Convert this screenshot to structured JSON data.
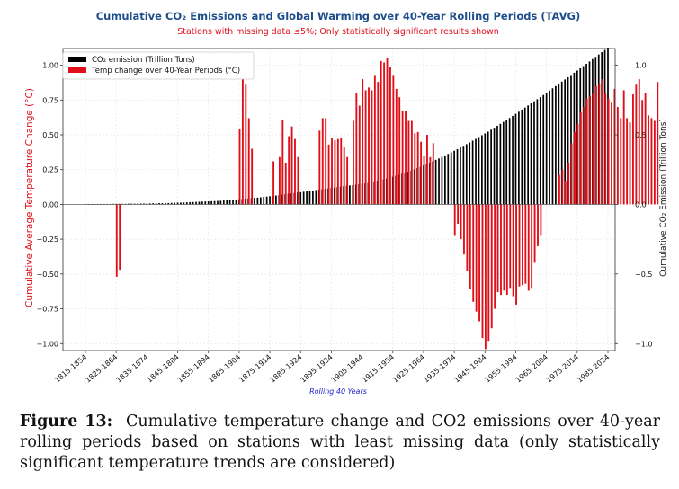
{
  "caption": {
    "label": "Figure 13:",
    "text": "Cumulative temperature change and CO2 emissions over 40-year rolling periods based on stations with least missing data (only statistically significant temperature trends are considered)"
  },
  "colors": {
    "co2": "#000000",
    "temp": "#e0101a",
    "title": "#1f4e8c"
  },
  "chart_data": {
    "type": "bar",
    "title": "Cumulative CO₂ Emissions and Global Warming over 40-Year Rolling Periods (TAVG)",
    "subtitle": "Stations with missing data ≤5%; Only statistically significant results shown",
    "xlabel": "Rolling 40 Years",
    "ylabel_left": "Cumulative Average Temperature Change (°C)",
    "ylabel_right": "Cumulative CO₂ Emission (Trillion Tons)",
    "ylim_left": [
      -1.05,
      1.12
    ],
    "ylim_right": [
      -1.05,
      1.12
    ],
    "yticks_left": [
      "1.00",
      "0.75",
      "0.50",
      "0.25",
      "0.00",
      "−0.25",
      "−0.50",
      "−0.75",
      "−1.00"
    ],
    "yticks_left_values": [
      1.0,
      0.75,
      0.5,
      0.25,
      0.0,
      -0.25,
      -0.5,
      -0.75,
      -1.0
    ],
    "yticks_right": [
      "1.0",
      "0.5",
      "0.0",
      "−0.5",
      "−1.0"
    ],
    "yticks_right_values": [
      1.0,
      0.5,
      0.0,
      -0.5,
      -1.0
    ],
    "grid": true,
    "legend_position": "top-left",
    "first_period_start": 1815,
    "period_length": 40,
    "xtick_every": 10,
    "xticks": [
      "1815-1854",
      "1825-1864",
      "1835-1874",
      "1845-1884",
      "1855-1894",
      "1865-1904",
      "1875-1914",
      "1885-1924",
      "1895-1934",
      "1905-1944",
      "1915-1954",
      "1925-1964",
      "1935-1974",
      "1945-1984",
      "1955-1994",
      "1965-2004",
      "1975-2014",
      "1985-2024"
    ],
    "series": [
      {
        "name": "CO₂ emission (Trillion Tons)",
        "axis": "right",
        "values": [
          0.002,
          0.002,
          0.002,
          0.002,
          0.002,
          0.003,
          0.003,
          0.003,
          0.003,
          0.004,
          0.004,
          0.004,
          0.004,
          0.004,
          0.005,
          0.005,
          0.005,
          0.006,
          0.006,
          0.006,
          0.007,
          0.007,
          0.008,
          0.008,
          0.009,
          0.009,
          0.01,
          0.01,
          0.011,
          0.012,
          0.013,
          0.013,
          0.014,
          0.015,
          0.016,
          0.017,
          0.018,
          0.019,
          0.02,
          0.021,
          0.022,
          0.023,
          0.024,
          0.025,
          0.026,
          0.028,
          0.03,
          0.031,
          0.033,
          0.035,
          0.037,
          0.039,
          0.041,
          0.043,
          0.045,
          0.047,
          0.049,
          0.051,
          0.054,
          0.056,
          0.059,
          0.061,
          0.064,
          0.067,
          0.07,
          0.073,
          0.076,
          0.079,
          0.082,
          0.085,
          0.088,
          0.091,
          0.094,
          0.097,
          0.1,
          0.103,
          0.106,
          0.109,
          0.112,
          0.115,
          0.118,
          0.121,
          0.124,
          0.127,
          0.13,
          0.133,
          0.136,
          0.139,
          0.142,
          0.145,
          0.148,
          0.151,
          0.155,
          0.16,
          0.165,
          0.17,
          0.175,
          0.18,
          0.186,
          0.192,
          0.199,
          0.206,
          0.213,
          0.22,
          0.227,
          0.235,
          0.243,
          0.252,
          0.261,
          0.27,
          0.28,
          0.29,
          0.3,
          0.31,
          0.32,
          0.33,
          0.341,
          0.352,
          0.363,
          0.374,
          0.385,
          0.397,
          0.409,
          0.421,
          0.433,
          0.445,
          0.458,
          0.471,
          0.484,
          0.497,
          0.51,
          0.523,
          0.537,
          0.551,
          0.565,
          0.579,
          0.593,
          0.607,
          0.621,
          0.636,
          0.651,
          0.666,
          0.681,
          0.696,
          0.711,
          0.726,
          0.741,
          0.756,
          0.771,
          0.786,
          0.802,
          0.818,
          0.834,
          0.85,
          0.866,
          0.882,
          0.898,
          0.914,
          0.93,
          0.946,
          0.962,
          0.978,
          0.994,
          1.01,
          1.027,
          1.044,
          1.06,
          1.077,
          1.094,
          1.11,
          1.127
        ]
      },
      {
        "name": "Temp change over 40-Year Periods (°C)",
        "axis": "left",
        "values": [
          0,
          0,
          0,
          0,
          0,
          0,
          0,
          0,
          0,
          0,
          -0.52,
          -0.47,
          0,
          0,
          0,
          0,
          0,
          0,
          0,
          0,
          0,
          0,
          0,
          0,
          0,
          0,
          0,
          0,
          0,
          0,
          0,
          0,
          0,
          0,
          0,
          0,
          0,
          0,
          0,
          0,
          0,
          0,
          0,
          0,
          0,
          0,
          0,
          0,
          0,
          0,
          0.54,
          0.95,
          0.86,
          0.62,
          0.4,
          0,
          0,
          0,
          0,
          0,
          0,
          0.31,
          0,
          0.34,
          0.61,
          0.3,
          0.49,
          0.56,
          0.47,
          0.34,
          0,
          0,
          0,
          0,
          0,
          0,
          0.53,
          0.62,
          0.62,
          0.43,
          0.48,
          0.46,
          0.47,
          0.48,
          0.41,
          0.34,
          0,
          0.6,
          0.8,
          0.71,
          0.9,
          0.82,
          0.84,
          0.82,
          0.93,
          0.88,
          1.03,
          1.02,
          1.05,
          0.99,
          0.93,
          0.83,
          0.77,
          0.67,
          0.67,
          0.6,
          0.6,
          0.51,
          0.52,
          0.45,
          0.35,
          0.5,
          0.34,
          0.44,
          0,
          0,
          0,
          0,
          0,
          0,
          -0.22,
          -0.14,
          -0.25,
          -0.36,
          -0.48,
          -0.61,
          -0.7,
          -0.77,
          -0.84,
          -0.96,
          -1.04,
          -0.98,
          -0.89,
          -0.75,
          -0.63,
          -0.65,
          -0.62,
          -0.65,
          -0.6,
          -0.66,
          -0.72,
          -0.59,
          -0.58,
          -0.57,
          -0.62,
          -0.6,
          -0.42,
          -0.3,
          -0.22,
          0,
          0,
          0,
          0,
          0,
          0.21,
          0.25,
          0.17,
          0.3,
          0.44,
          0.52,
          0.58,
          0.66,
          0.7,
          0.76,
          0.78,
          0.8,
          0.85,
          0.87,
          0.9,
          0.8,
          0.76,
          0.73,
          0.83,
          0.7,
          0.62,
          0.82,
          0.62,
          0.59,
          0.79,
          0.86,
          0.9,
          0.75,
          0.8,
          0.64,
          0.62,
          0.6,
          0.88
        ]
      }
    ]
  }
}
